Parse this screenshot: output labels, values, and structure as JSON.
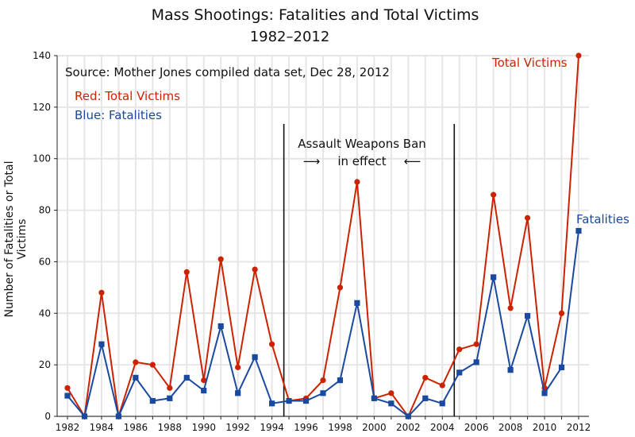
{
  "title": "Mass Shootings:  Fatalities and Total Victims",
  "subtitle": "1982–2012",
  "source_note": "Source:  Mother Jones compiled data set, Dec 28, 2012",
  "legend_red": "Red:  Total Victims",
  "legend_blue": "Blue:  Fatalities",
  "annotation_line1": "Assault Weapons Ban",
  "annotation_line2": "in effect",
  "end_label_red": "Total Victims",
  "end_label_blue": "Fatalities",
  "colors": {
    "total_victims": "#cc2200",
    "fatalities": "#1a49a0",
    "grid": "#e6e6e6"
  },
  "chart_data": {
    "type": "line",
    "title": "Mass Shootings:  Fatalities and Total Victims",
    "subtitle": "1982–2012",
    "ylabel": "Number of Fatalities or Total Victims",
    "xlabel": "",
    "x": [
      1982,
      1983,
      1984,
      1985,
      1986,
      1987,
      1988,
      1989,
      1990,
      1991,
      1992,
      1993,
      1994,
      1995,
      1996,
      1997,
      1998,
      1999,
      2000,
      2001,
      2002,
      2003,
      2004,
      2005,
      2006,
      2007,
      2008,
      2009,
      2010,
      2011,
      2012
    ],
    "xlim": [
      1982,
      2012
    ],
    "ylim": [
      0,
      140
    ],
    "x_ticks": [
      1982,
      1984,
      1986,
      1988,
      1990,
      1992,
      1994,
      1996,
      1998,
      2000,
      2002,
      2004,
      2006,
      2008,
      2010,
      2012
    ],
    "y_ticks": [
      0,
      20,
      40,
      60,
      80,
      100,
      120,
      140
    ],
    "grid": true,
    "series": [
      {
        "name": "Total Victims",
        "color": "#cc2200",
        "marker": "circle",
        "values": [
          11,
          0,
          48,
          0,
          21,
          20,
          11,
          56,
          14,
          61,
          19,
          57,
          28,
          6,
          7,
          14,
          50,
          91,
          7,
          9,
          0,
          15,
          12,
          26,
          28,
          86,
          42,
          77,
          11,
          40,
          140
        ]
      },
      {
        "name": "Fatalities",
        "color": "#1a49a0",
        "marker": "square",
        "values": [
          8,
          0,
          28,
          0,
          15,
          6,
          7,
          15,
          10,
          35,
          9,
          23,
          5,
          6,
          6,
          9,
          14,
          44,
          7,
          5,
          0,
          7,
          5,
          17,
          21,
          54,
          18,
          39,
          9,
          19,
          72
        ]
      }
    ],
    "vertical_lines": [
      1994.7,
      2004.7
    ],
    "annotations": [
      {
        "text": "Assault Weapons Ban in effect",
        "between": [
          1994.7,
          2004.7
        ]
      }
    ]
  }
}
